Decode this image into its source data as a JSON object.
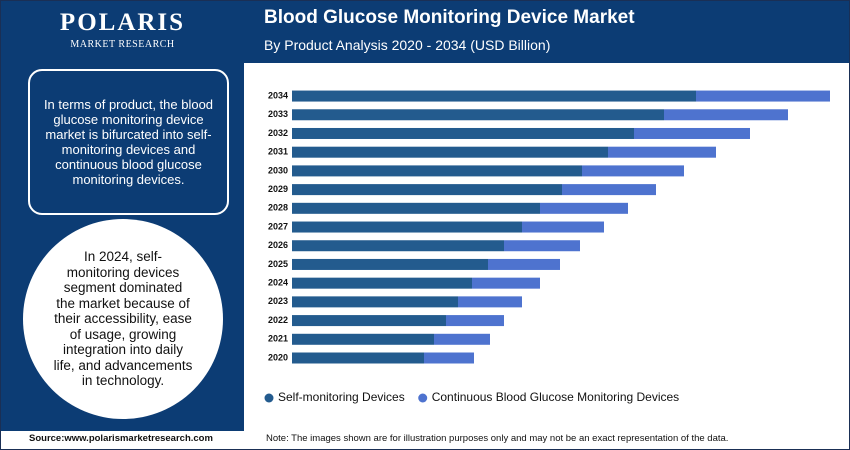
{
  "logo": {
    "name": "POLARIS",
    "tagline": "MARKET RESEARCH"
  },
  "summary": "In terms of product, the blood glucose monitoring device market is bifurcated into self-monitoring devices and continuous blood glucose monitoring devices.",
  "highlight": "In 2024, self-monitoring devices segment dominated the market because of their accessibility, ease of usage, growing integration into daily life, and advancements in technology.",
  "source": "Source:www.polarismarketresearch.com",
  "note": "Note: The images shown are for illustration purposes only and may not be an exact representation of the data.",
  "chart_data": {
    "type": "bar",
    "orientation": "horizontal",
    "stacked": true,
    "title": "Blood Glucose Monitoring Device Market",
    "subtitle": "By Product Analysis 2020 - 2034 (USD Billion)",
    "categories": [
      "2020",
      "2021",
      "2022",
      "2023",
      "2024",
      "2025",
      "2026",
      "2027",
      "2028",
      "2029",
      "2030",
      "2031",
      "2032",
      "2033",
      "2034"
    ],
    "series": [
      {
        "name": "Self-monitoring Devices",
        "color": "#235b8e",
        "values": [
          6.6,
          7.1,
          7.7,
          8.3,
          9.0,
          9.8,
          10.6,
          11.5,
          12.4,
          13.5,
          14.5,
          15.8,
          17.1,
          18.6,
          20.2
        ]
      },
      {
        "name": "Continuous Blood Glucose Monitoring Devices",
        "color": "#4e73cf",
        "values": [
          2.5,
          2.8,
          2.9,
          3.2,
          3.4,
          3.6,
          3.8,
          4.1,
          4.4,
          4.7,
          5.1,
          5.4,
          5.8,
          6.2,
          6.7
        ]
      }
    ],
    "xlim": [
      0,
      28
    ],
    "legend": "bottom"
  }
}
